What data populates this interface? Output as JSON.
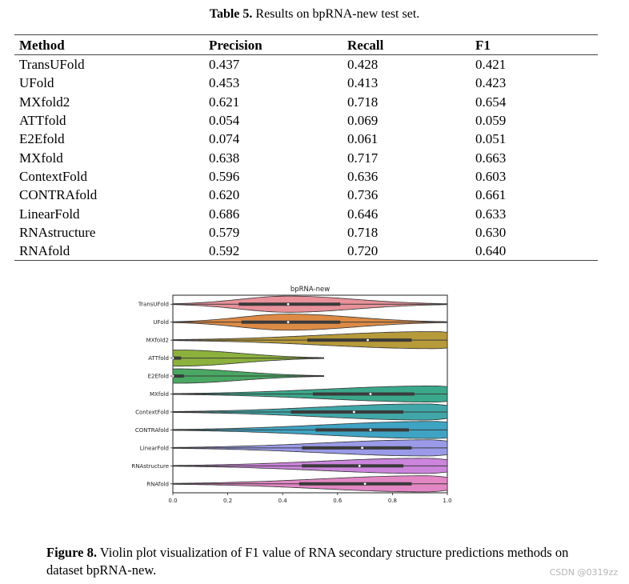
{
  "table_caption": {
    "label": "Table 5.",
    "text": " Results on bpRNA-new test set."
  },
  "table": {
    "headers": [
      "Method",
      "Precision",
      "Recall",
      "F1"
    ],
    "rows": [
      [
        "TransUFold",
        "0.437",
        "0.428",
        "0.421"
      ],
      [
        "UFold",
        "0.453",
        "0.413",
        "0.423"
      ],
      [
        "MXfold2",
        "0.621",
        "0.718",
        "0.654"
      ],
      [
        "ATTfold",
        "0.054",
        "0.069",
        "0.059"
      ],
      [
        "E2Efold",
        "0.074",
        "0.061",
        "0.051"
      ],
      [
        "MXfold",
        "0.638",
        "0.717",
        "0.663"
      ],
      [
        "ContextFold",
        "0.596",
        "0.636",
        "0.603"
      ],
      [
        "CONTRAfold",
        "0.620",
        "0.736",
        "0.661"
      ],
      [
        "LinearFold",
        "0.686",
        "0.646",
        "0.633"
      ],
      [
        "RNAstructure",
        "0.579",
        "0.718",
        "0.630"
      ],
      [
        "RNAfold",
        "0.592",
        "0.720",
        "0.640"
      ]
    ]
  },
  "chart_data": {
    "type": "violin",
    "title": "bpRNA-new",
    "xlabel": "",
    "ylabel": "",
    "xlim": [
      0.0,
      1.0
    ],
    "xticks": [
      "0.0",
      "0.2",
      "0.4",
      "0.6",
      "0.8",
      "1.0"
    ],
    "series": [
      {
        "name": "TransUFold",
        "color": "#e8919a",
        "q1": 0.24,
        "median": 0.42,
        "q3": 0.61,
        "whisker_low": 0.0,
        "whisker_high": 1.0,
        "max_width_at": 0.42,
        "width": 0.9
      },
      {
        "name": "UFold",
        "color": "#dd8a45",
        "q1": 0.25,
        "median": 0.42,
        "q3": 0.61,
        "whisker_low": 0.0,
        "whisker_high": 1.0,
        "max_width_at": 0.42,
        "width": 0.9
      },
      {
        "name": "MXfold2",
        "color": "#b79a3a",
        "q1": 0.49,
        "median": 0.71,
        "q3": 0.87,
        "whisker_low": 0.0,
        "whisker_high": 1.0,
        "max_width_at": 0.95,
        "width": 0.95
      },
      {
        "name": "ATTfold",
        "color": "#8cb13d",
        "q1": 0.0,
        "median": 0.0,
        "q3": 0.03,
        "whisker_low": 0.0,
        "whisker_high": 0.55,
        "max_width_at": 0.02,
        "width": 0.9
      },
      {
        "name": "E2Efold",
        "color": "#4aa864",
        "q1": 0.0,
        "median": 0.0,
        "q3": 0.04,
        "whisker_low": 0.0,
        "whisker_high": 0.55,
        "max_width_at": 0.02,
        "width": 0.8
      },
      {
        "name": "MXfold",
        "color": "#3ba88c",
        "q1": 0.51,
        "median": 0.72,
        "q3": 0.88,
        "whisker_low": 0.0,
        "whisker_high": 1.0,
        "max_width_at": 0.95,
        "width": 0.9
      },
      {
        "name": "ContextFold",
        "color": "#40a6a8",
        "q1": 0.43,
        "median": 0.66,
        "q3": 0.84,
        "whisker_low": 0.0,
        "whisker_high": 1.0,
        "max_width_at": 0.92,
        "width": 0.9
      },
      {
        "name": "CONTRAfold",
        "color": "#3fa4c4",
        "q1": 0.52,
        "median": 0.72,
        "q3": 0.86,
        "whisker_low": 0.0,
        "whisker_high": 1.0,
        "max_width_at": 0.95,
        "width": 0.95
      },
      {
        "name": "LinearFold",
        "color": "#9a9ae8",
        "q1": 0.47,
        "median": 0.69,
        "q3": 0.87,
        "whisker_low": 0.0,
        "whisker_high": 1.0,
        "max_width_at": 0.93,
        "width": 0.9
      },
      {
        "name": "RNAstructure",
        "color": "#cc85dc",
        "q1": 0.47,
        "median": 0.68,
        "q3": 0.84,
        "whisker_low": 0.0,
        "whisker_high": 1.0,
        "max_width_at": 0.92,
        "width": 0.85
      },
      {
        "name": "RNAfold",
        "color": "#e386c4",
        "q1": 0.46,
        "median": 0.7,
        "q3": 0.87,
        "whisker_low": 0.0,
        "whisker_high": 1.0,
        "max_width_at": 0.92,
        "width": 0.9
      }
    ]
  },
  "figure_caption": {
    "label": "Figure 8.",
    "text": " Violin plot visualization of F1 value of RNA secondary structure predictions methods on dataset bpRNA-new."
  },
  "watermark": "CSDN @0319zz"
}
